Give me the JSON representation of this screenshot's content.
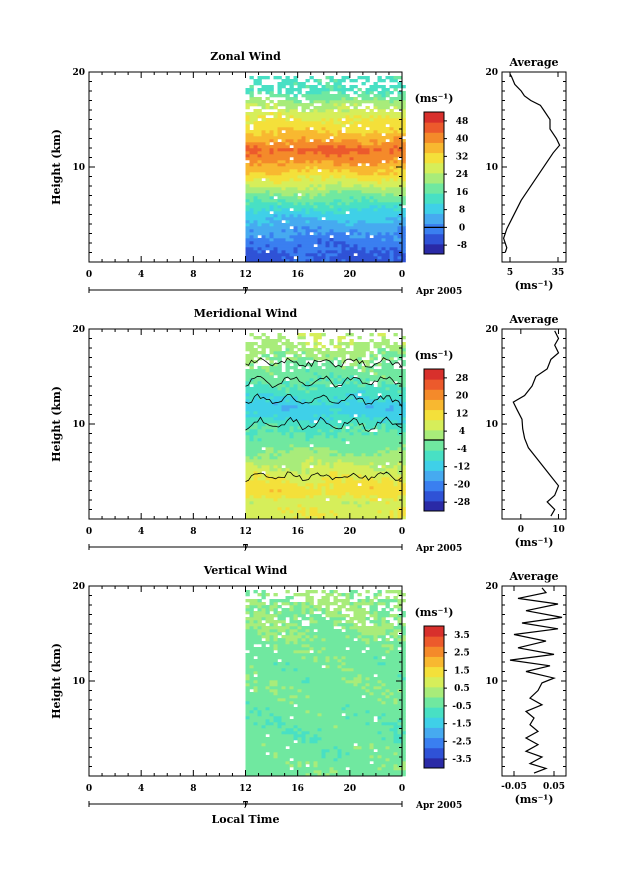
{
  "chart_data": [
    {
      "type": "heatmap",
      "title": "Zonal Wind",
      "ylabel": "Height (km)",
      "unit": "(ms⁻¹)",
      "ylim": [
        0,
        20
      ],
      "yticks": [
        "20",
        "10"
      ],
      "xticks": [
        "0",
        "4",
        "8",
        "12",
        "16",
        "20",
        "0"
      ],
      "date_day": "7",
      "date_label": "Apr 2005",
      "data_start_hour": 12,
      "colorbar_ticks": [
        "48",
        "40",
        "32",
        "24",
        "16",
        "8",
        "0",
        "-8"
      ],
      "colorbar_range": [
        -12,
        52
      ],
      "zero_line_value": 0,
      "profiles": [
        {
          "h": 1,
          "v": -4
        },
        {
          "h": 2,
          "v": -2
        },
        {
          "h": 3,
          "v": 1
        },
        {
          "h": 4,
          "v": 4
        },
        {
          "h": 5,
          "v": 8
        },
        {
          "h": 6,
          "v": 13
        },
        {
          "h": 7,
          "v": 18
        },
        {
          "h": 8,
          "v": 24
        },
        {
          "h": 9,
          "v": 30
        },
        {
          "h": 10,
          "v": 35
        },
        {
          "h": 11,
          "v": 40
        },
        {
          "h": 12,
          "v": 44
        },
        {
          "h": 13,
          "v": 38
        },
        {
          "h": 14,
          "v": 33
        },
        {
          "h": 15,
          "v": 30
        },
        {
          "h": 16,
          "v": 26
        },
        {
          "h": 17,
          "v": 22
        },
        {
          "h": 18,
          "v": 15
        },
        {
          "h": 19,
          "v": 14
        }
      ],
      "average": {
        "title": "Average",
        "xticks": [
          "5",
          "35"
        ],
        "xlim": [
          0,
          40
        ],
        "xlabel": "(ms⁻¹)",
        "yticks": [
          "20",
          "10"
        ],
        "points": [
          [
            2,
            1
          ],
          [
            3,
            1.5
          ],
          [
            1,
            2.5
          ],
          [
            3,
            3.5
          ],
          [
            6,
            4.5
          ],
          [
            9,
            5.5
          ],
          [
            12,
            6.5
          ],
          [
            16,
            7.5
          ],
          [
            20,
            8.5
          ],
          [
            24,
            9.5
          ],
          [
            28,
            10.5
          ],
          [
            32,
            11.5
          ],
          [
            36,
            12.3
          ],
          [
            34,
            13
          ],
          [
            30,
            14
          ],
          [
            30,
            15
          ],
          [
            26,
            16
          ],
          [
            24,
            16.5
          ],
          [
            18,
            17
          ],
          [
            14,
            17.5
          ],
          [
            12,
            18
          ],
          [
            8,
            18.7
          ],
          [
            6,
            19.5
          ],
          [
            5,
            19.8
          ]
        ]
      },
      "contours": false
    },
    {
      "type": "heatmap",
      "title": "Meridional Wind",
      "ylabel": "Height (km)",
      "unit": "(ms⁻¹)",
      "ylim": [
        0,
        20
      ],
      "yticks": [
        "20",
        "10"
      ],
      "xticks": [
        "0",
        "4",
        "8",
        "12",
        "16",
        "20",
        "0"
      ],
      "date_day": "7",
      "date_label": "Apr 2005",
      "data_start_hour": 12,
      "colorbar_ticks": [
        "28",
        "20",
        "12",
        "4",
        "-4",
        "-12",
        "-20",
        "-28"
      ],
      "colorbar_range": [
        -32,
        32
      ],
      "zero_line_value": 0,
      "profiles": [
        {
          "h": 1,
          "v": 8
        },
        {
          "h": 2,
          "v": 6
        },
        {
          "h": 3,
          "v": 12
        },
        {
          "h": 4,
          "v": 10
        },
        {
          "h": 5,
          "v": 7
        },
        {
          "h": 6,
          "v": 4
        },
        {
          "h": 7,
          "v": 1
        },
        {
          "h": 8,
          "v": -2
        },
        {
          "h": 9,
          "v": -4
        },
        {
          "h": 10,
          "v": -6
        },
        {
          "h": 11,
          "v": -10
        },
        {
          "h": 12,
          "v": -12
        },
        {
          "h": 13,
          "v": -8
        },
        {
          "h": 14,
          "v": -6
        },
        {
          "h": 15,
          "v": -3
        },
        {
          "h": 16,
          "v": -2
        },
        {
          "h": 17,
          "v": 0
        },
        {
          "h": 18,
          "v": 2
        },
        {
          "h": 19,
          "v": 4
        }
      ],
      "average": {
        "title": "Average",
        "xticks": [
          "0",
          "10"
        ],
        "xlim": [
          -5,
          12
        ],
        "xlabel": "(ms⁻¹)",
        "yticks": [
          "20",
          "10"
        ],
        "points": [
          [
            8,
            0.3
          ],
          [
            9,
            1
          ],
          [
            7,
            1.8
          ],
          [
            9,
            2.5
          ],
          [
            10,
            3.5
          ],
          [
            8,
            4.5
          ],
          [
            6,
            5.5
          ],
          [
            4,
            6.5
          ],
          [
            2,
            7.5
          ],
          [
            1,
            8.5
          ],
          [
            0.5,
            9.5
          ],
          [
            0.3,
            10.5
          ],
          [
            -1,
            11.5
          ],
          [
            -2,
            12.3
          ],
          [
            1,
            13
          ],
          [
            3,
            14
          ],
          [
            4,
            15
          ],
          [
            7,
            15.8
          ],
          [
            8,
            16.8
          ],
          [
            10,
            17.5
          ],
          [
            9,
            18.3
          ],
          [
            10,
            19
          ],
          [
            9,
            19.8
          ]
        ]
      },
      "contours": true
    },
    {
      "type": "heatmap",
      "title": "Vertical Wind",
      "ylabel": "Height (km)",
      "xlabel": "Local Time",
      "unit": "(ms⁻¹)",
      "ylim": [
        0,
        20
      ],
      "yticks": [
        "20",
        "10"
      ],
      "xticks": [
        "0",
        "4",
        "8",
        "12",
        "16",
        "20",
        "0"
      ],
      "date_day": "7",
      "date_label": "Apr 2005",
      "data_start_hour": 12,
      "colorbar_ticks": [
        "3.5",
        "2.5",
        "1.5",
        "0.5",
        "-0.5",
        "-1.5",
        "-2.5",
        "-3.5"
      ],
      "colorbar_range": [
        -4,
        4
      ],
      "profiles": [
        {
          "h": 1,
          "v": -0.2
        },
        {
          "h": 3,
          "v": -0.3
        },
        {
          "h": 5,
          "v": -0.4
        },
        {
          "h": 7,
          "v": -0.3
        },
        {
          "h": 9,
          "v": -0.2
        },
        {
          "h": 11,
          "v": -0.3
        },
        {
          "h": 13,
          "v": -0.2
        },
        {
          "h": 15,
          "v": -0.1
        },
        {
          "h": 17,
          "v": 0
        },
        {
          "h": 19,
          "v": 0.1
        }
      ],
      "average": {
        "title": "Average",
        "xticks": [
          "-0.05",
          "0.05"
        ],
        "xlim": [
          -0.08,
          0.08
        ],
        "xlabel": "(ms⁻¹)",
        "yticks": [
          "20",
          "10"
        ],
        "points": [
          [
            0.0,
            0.3
          ],
          [
            0.03,
            0.8
          ],
          [
            -0.01,
            1.3
          ],
          [
            0.02,
            2
          ],
          [
            -0.02,
            2.6
          ],
          [
            0.01,
            3.3
          ],
          [
            -0.02,
            4
          ],
          [
            0.01,
            4.7
          ],
          [
            -0.01,
            5.4
          ],
          [
            0.0,
            6.1
          ],
          [
            -0.02,
            6.8
          ],
          [
            0.02,
            7.5
          ],
          [
            -0.01,
            8.2
          ],
          [
            0.01,
            9
          ],
          [
            0.02,
            9.8
          ],
          [
            0.05,
            10.3
          ],
          [
            -0.02,
            11
          ],
          [
            0.04,
            11.6
          ],
          [
            -0.06,
            12.2
          ],
          [
            0.05,
            12.8
          ],
          [
            -0.04,
            13.5
          ],
          [
            0.03,
            14.2
          ],
          [
            -0.05,
            14.9
          ],
          [
            0.06,
            15.5
          ],
          [
            -0.03,
            16.1
          ],
          [
            0.07,
            16.7
          ],
          [
            -0.02,
            17.4
          ],
          [
            0.06,
            18.1
          ],
          [
            -0.04,
            18.7
          ],
          [
            0.03,
            19.3
          ],
          [
            0.02,
            19.8
          ]
        ]
      },
      "contours": false
    }
  ]
}
